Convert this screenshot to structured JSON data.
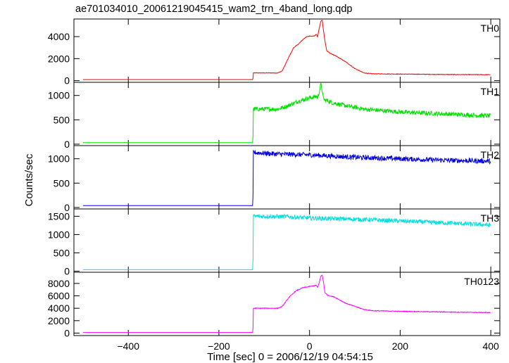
{
  "chart_data": {
    "type": "line",
    "title": "ae701034010_20061219045415_wam2_trn_4band_long.qdp",
    "xlabel": "Time [sec] 0 = 2006/12/19 04:54:15",
    "ylabel": "Counts/sec",
    "xlim": [
      -520,
      420
    ],
    "x_ticks": [
      -400,
      -200,
      0,
      200,
      400
    ],
    "x_tick_labels": [
      "−400",
      "−200",
      "0",
      "200",
      "400"
    ],
    "panels": [
      {
        "name": "TH0",
        "color": "#ff0000",
        "ylim": [
          -150,
          5600
        ],
        "y_ticks": [
          0,
          2000,
          4000
        ],
        "y_tick_labels": [
          "0",
          "2000",
          "4000"
        ],
        "noise": 25,
        "x": [
          -500,
          -125,
          -124,
          -70,
          -60,
          -45,
          -35,
          -25,
          -18,
          -10,
          -5,
          0,
          10,
          15,
          18,
          20,
          25,
          28,
          30,
          34,
          38,
          45,
          60,
          80,
          100,
          120,
          140,
          200,
          300,
          400
        ],
        "y": [
          100,
          100,
          700,
          700,
          900,
          2200,
          3000,
          3300,
          3600,
          3900,
          4000,
          4050,
          4050,
          4200,
          3950,
          4500,
          5400,
          5500,
          4800,
          3600,
          2700,
          2500,
          2200,
          1700,
          1100,
          700,
          620,
          600,
          560,
          540
        ]
      },
      {
        "name": "TH1",
        "color": "#00e000",
        "ylim": [
          -30,
          1270
        ],
        "y_ticks": [
          0,
          500,
          1000
        ],
        "y_tick_labels": [
          "0",
          "500",
          "1000"
        ],
        "noise": 45,
        "x": [
          -500,
          -125,
          -124,
          -70,
          -50,
          -25,
          0,
          15,
          18,
          22,
          25,
          28,
          30,
          34,
          38,
          50,
          80,
          120,
          200,
          300,
          400
        ],
        "y": [
          30,
          30,
          720,
          720,
          780,
          880,
          950,
          980,
          950,
          1100,
          1230,
          1100,
          950,
          900,
          900,
          850,
          790,
          720,
          660,
          620,
          580
        ]
      },
      {
        "name": "TH2",
        "color": "#0000e0",
        "ylim": [
          -30,
          1270
        ],
        "y_ticks": [
          0,
          500,
          1000
        ],
        "y_tick_labels": [
          "0",
          "500",
          "1000"
        ],
        "noise": 50,
        "x": [
          -500,
          -125,
          -124,
          -80,
          0,
          100,
          200,
          300,
          400
        ],
        "y": [
          40,
          40,
          1130,
          1100,
          1080,
          1030,
          1000,
          970,
          950
        ]
      },
      {
        "name": "TH3",
        "color": "#00e0e0",
        "ylim": [
          -30,
          1700
        ],
        "y_ticks": [
          0,
          500,
          1000,
          1500
        ],
        "y_tick_labels": [
          "0",
          "500",
          "1000",
          "1500"
        ],
        "noise": 60,
        "x": [
          -500,
          -125,
          -124,
          -50,
          0,
          100,
          200,
          300,
          400
        ],
        "y": [
          40,
          40,
          1500,
          1490,
          1450,
          1420,
          1370,
          1320,
          1260
        ]
      },
      {
        "name": "TH0123",
        "color": "#ff00ff",
        "ylim": [
          -400,
          9800
        ],
        "y_ticks": [
          0,
          2000,
          4000,
          6000,
          8000
        ],
        "y_tick_labels": [
          "0",
          "2000",
          "4000",
          "6000",
          "8000"
        ],
        "noise": 60,
        "x": [
          -500,
          -125,
          -124,
          -70,
          -60,
          -45,
          -30,
          -15,
          0,
          15,
          18,
          22,
          25,
          28,
          30,
          34,
          40,
          55,
          80,
          120,
          140,
          200,
          300,
          400
        ],
        "y": [
          100,
          100,
          4000,
          4000,
          4300,
          5800,
          6800,
          7300,
          7500,
          7700,
          7300,
          8300,
          9200,
          9300,
          8600,
          6500,
          6100,
          5800,
          4800,
          3800,
          3600,
          3500,
          3400,
          3300
        ]
      }
    ]
  }
}
